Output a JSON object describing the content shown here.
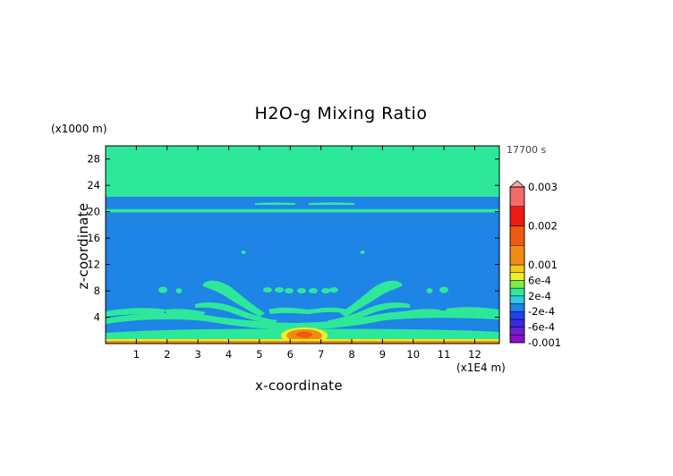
{
  "chart_data": {
    "type": "heatmap",
    "title": "H2O-g Mixing Ratio",
    "xlabel": "x-coordinate",
    "ylabel": "z-coordinate",
    "x_unit": "(x1E4 m)",
    "y_unit": "(x1000 m)",
    "time_label": "17700 s",
    "xlim": [
      0,
      12.8
    ],
    "ylim": [
      0,
      30
    ],
    "x_ticks": [
      1,
      2,
      3,
      4,
      5,
      6,
      7,
      8,
      9,
      10,
      11,
      12
    ],
    "y_ticks": [
      4,
      8,
      12,
      16,
      20,
      24,
      28
    ],
    "levels": [
      {
        "value": -0.001,
        "color": "#8a10c8"
      },
      {
        "value": -0.0008,
        "color": "#6a20d0"
      },
      {
        "value": -0.0006,
        "color": "#3a2ae0"
      },
      {
        "value": -0.0004,
        "color": "#2244ee"
      },
      {
        "value": -0.0002,
        "color": "#1e84e6"
      },
      {
        "value": 0,
        "color": "#30c8e8"
      },
      {
        "value": 0.0002,
        "color": "#2ee89a"
      },
      {
        "value": 0.0004,
        "color": "#7af040"
      },
      {
        "value": 0.0006,
        "color": "#eef020"
      },
      {
        "value": 0.0008,
        "color": "#f8c818"
      },
      {
        "value": 0.001,
        "color": "#f08c14"
      },
      {
        "value": 0.0015,
        "color": "#ee5a10"
      },
      {
        "value": 0.002,
        "color": "#ee1a12"
      },
      {
        "value": 0.0025,
        "color": "#f46a6a"
      },
      {
        "value": 0.003,
        "color": "#f8a8a8"
      }
    ],
    "colorbar_labels": [
      "0.003",
      "0.002",
      "0.001",
      "6e-4",
      "2e-4",
      "-2e-4",
      "-6e-4",
      "-0.001"
    ],
    "colorbar_label_values": [
      0.003,
      0.002,
      0.001,
      0.0006,
      0.0002,
      -0.0002,
      -0.0006,
      -0.001
    ],
    "regions": [
      {
        "name": "upper layer",
        "x": [
          0,
          12.8
        ],
        "z": [
          22.3,
          30
        ],
        "level": 0.0002
      },
      {
        "name": "lower layer",
        "x": [
          0,
          12.8
        ],
        "z": [
          0,
          22.3
        ],
        "level": -0.0002
      },
      {
        "name": "thin band near 20 km",
        "x": [
          0,
          12.8
        ],
        "z": [
          19.9,
          20.4
        ],
        "level": 0.0002
      },
      {
        "name": "surface layer",
        "x": [
          0,
          12.8
        ],
        "z": [
          0,
          0.6
        ],
        "level": 0.001
      },
      {
        "name": "core near surface",
        "x": [
          5.7,
          7.0
        ],
        "z": [
          0.5,
          2.5
        ],
        "level": 0.001
      }
    ]
  }
}
